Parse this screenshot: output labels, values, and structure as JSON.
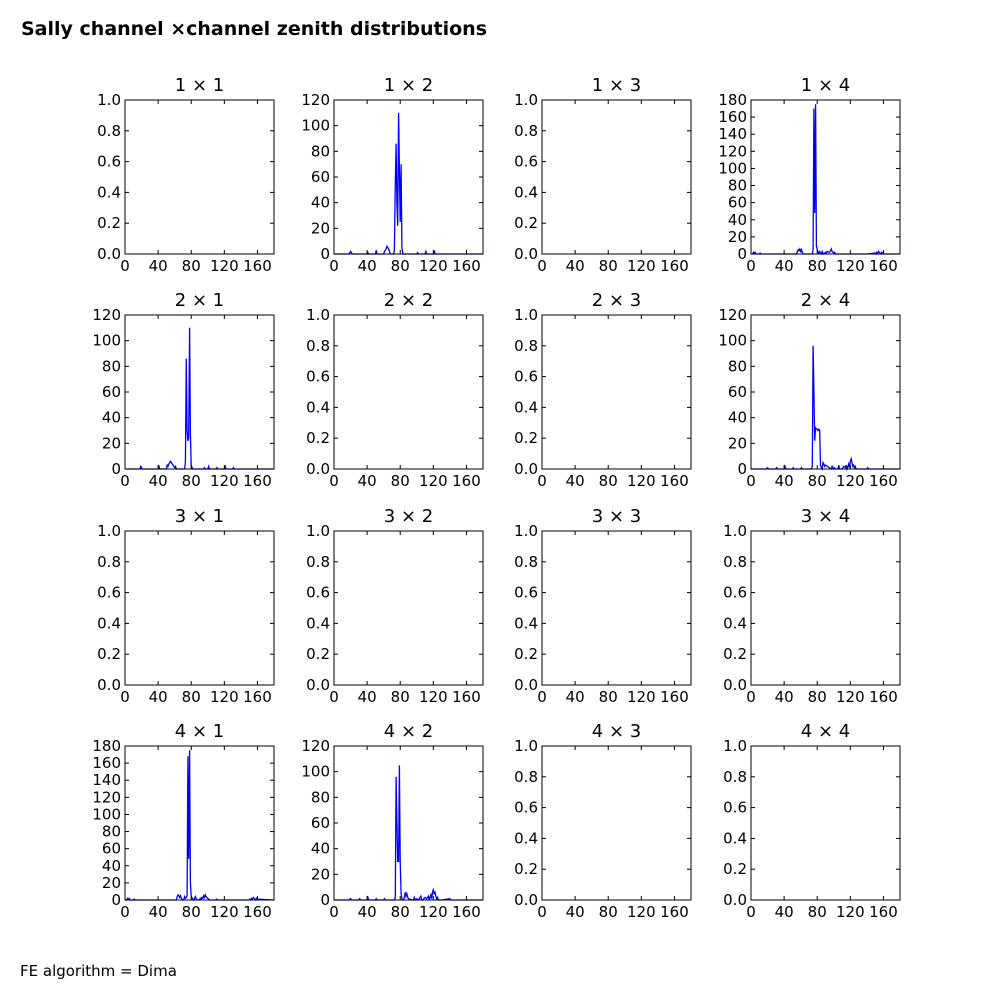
{
  "figure": {
    "title": "Sally channel ×channel zenith distributions",
    "footnote": "FE algorithm = Dima",
    "line_color": "#0000ff"
  },
  "chart_data": [
    {
      "type": "line",
      "title": "1  × 1",
      "x_ticks": [
        0,
        40,
        80,
        120,
        160
      ],
      "y_ticks": [
        "0.0",
        "0.2",
        "0.4",
        "0.6",
        "0.8",
        "1.0"
      ],
      "xlim": [
        0,
        180
      ],
      "ylim": [
        0,
        1
      ],
      "x": [],
      "y": []
    },
    {
      "type": "line",
      "title": "1  × 2",
      "x_ticks": [
        0,
        40,
        80,
        120,
        160
      ],
      "y_ticks": [
        "0",
        "20",
        "40",
        "60",
        "80",
        "100",
        "120"
      ],
      "xlim": [
        0,
        180
      ],
      "ylim": [
        0,
        120
      ],
      "x": [
        0,
        18,
        19,
        20,
        21,
        22,
        40,
        41,
        42,
        50,
        51,
        52,
        60,
        61,
        62,
        63,
        64,
        65,
        66,
        67,
        68,
        69,
        70,
        71,
        72,
        73,
        74,
        75,
        76,
        77,
        78,
        79,
        80,
        81,
        82,
        83,
        84,
        85,
        86,
        87,
        90,
        100,
        101,
        102,
        110,
        111,
        112,
        120,
        121,
        122,
        130,
        140,
        180
      ],
      "y": [
        0,
        0,
        1,
        2,
        1,
        0,
        0,
        1,
        0,
        0,
        3,
        0,
        0,
        2,
        3,
        4,
        6,
        5,
        4,
        2,
        0,
        0,
        0,
        0,
        0,
        3,
        55,
        86,
        40,
        22,
        110,
        65,
        25,
        70,
        5,
        1,
        0,
        0,
        0,
        0,
        0,
        0,
        1,
        0,
        0,
        2,
        0,
        0,
        2,
        0,
        0,
        0,
        0
      ]
    },
    {
      "type": "line",
      "title": "1  × 3",
      "x_ticks": [
        0,
        40,
        80,
        120,
        160
      ],
      "y_ticks": [
        "0.0",
        "0.2",
        "0.4",
        "0.6",
        "0.8",
        "1.0"
      ],
      "xlim": [
        0,
        180
      ],
      "ylim": [
        0,
        1
      ],
      "x": [],
      "y": []
    },
    {
      "type": "line",
      "title": "1  × 4",
      "x_ticks": [
        0,
        40,
        80,
        120,
        160
      ],
      "y_ticks": [
        "0",
        "20",
        "40",
        "60",
        "80",
        "100",
        "120",
        "140",
        "160",
        "180"
      ],
      "xlim": [
        0,
        180
      ],
      "ylim": [
        0,
        180
      ],
      "x": [
        0,
        2,
        3,
        4,
        5,
        6,
        10,
        11,
        12,
        30,
        40,
        50,
        55,
        56,
        57,
        58,
        59,
        60,
        61,
        62,
        63,
        65,
        70,
        74,
        75,
        76,
        77,
        78,
        79,
        80,
        81,
        82,
        83,
        84,
        85,
        86,
        87,
        88,
        90,
        91,
        92,
        95,
        96,
        97,
        98,
        99,
        100,
        101,
        102,
        105,
        110,
        115,
        120,
        125,
        130,
        140,
        150,
        151,
        152,
        153,
        154,
        155,
        156,
        157,
        158,
        159,
        160,
        180
      ],
      "y": [
        0,
        0,
        2,
        1,
        2,
        0,
        0,
        1,
        0,
        0,
        0,
        0,
        0,
        3,
        5,
        4,
        6,
        3,
        5,
        2,
        0,
        0,
        0,
        0,
        5,
        170,
        48,
        175,
        10,
        5,
        2,
        1,
        3,
        1,
        0,
        3,
        1,
        0,
        2,
        1,
        3,
        2,
        4,
        6,
        3,
        2,
        1,
        2,
        0,
        0,
        0,
        0,
        0,
        0,
        0,
        0,
        1,
        0,
        2,
        1,
        3,
        2,
        1,
        0,
        2,
        1,
        0,
        0
      ]
    },
    {
      "type": "line",
      "title": "2  × 1",
      "x_ticks": [
        0,
        40,
        80,
        120,
        160
      ],
      "y_ticks": [
        "0",
        "20",
        "40",
        "60",
        "80",
        "100",
        "120"
      ],
      "xlim": [
        0,
        180
      ],
      "ylim": [
        0,
        120
      ],
      "x": [
        0,
        18,
        19,
        20,
        21,
        40,
        41,
        42,
        50,
        51,
        52,
        53,
        54,
        55,
        56,
        57,
        58,
        59,
        60,
        61,
        62,
        63,
        70,
        72,
        73,
        74,
        75,
        76,
        77,
        78,
        79,
        80,
        81,
        82,
        83,
        90,
        95,
        96,
        97,
        100,
        101,
        102,
        110,
        111,
        112,
        120,
        121,
        122,
        130,
        131,
        132,
        140,
        180
      ],
      "y": [
        0,
        0,
        2,
        1,
        0,
        0,
        2,
        0,
        0,
        3,
        2,
        4,
        5,
        6,
        5,
        4,
        3,
        2,
        1,
        2,
        0,
        0,
        0,
        0,
        5,
        86,
        30,
        22,
        24,
        110,
        28,
        3,
        1,
        0,
        0,
        0,
        0,
        1,
        0,
        0,
        2,
        0,
        0,
        1,
        0,
        0,
        2,
        0,
        0,
        1,
        0,
        0,
        0
      ]
    },
    {
      "type": "line",
      "title": "2  × 2",
      "x_ticks": [
        0,
        40,
        80,
        120,
        160
      ],
      "y_ticks": [
        "0.0",
        "0.2",
        "0.4",
        "0.6",
        "0.8",
        "1.0"
      ],
      "xlim": [
        0,
        180
      ],
      "ylim": [
        0,
        1
      ],
      "x": [],
      "y": []
    },
    {
      "type": "line",
      "title": "2  × 3",
      "x_ticks": [
        0,
        40,
        80,
        120,
        160
      ],
      "y_ticks": [
        "0.0",
        "0.2",
        "0.4",
        "0.6",
        "0.8",
        "1.0"
      ],
      "xlim": [
        0,
        180
      ],
      "ylim": [
        0,
        1
      ],
      "x": [],
      "y": []
    },
    {
      "type": "line",
      "title": "2  × 4",
      "x_ticks": [
        0,
        40,
        80,
        120,
        160
      ],
      "y_ticks": [
        "0",
        "20",
        "40",
        "60",
        "80",
        "100",
        "120"
      ],
      "xlim": [
        0,
        180
      ],
      "ylim": [
        0,
        120
      ],
      "x": [
        0,
        18,
        20,
        21,
        22,
        30,
        31,
        32,
        40,
        41,
        42,
        50,
        51,
        52,
        60,
        61,
        62,
        63,
        72,
        73,
        74,
        75,
        76,
        77,
        78,
        79,
        80,
        81,
        82,
        83,
        84,
        85,
        86,
        87,
        88,
        89,
        90,
        95,
        96,
        97,
        98,
        100,
        101,
        102,
        105,
        106,
        107,
        110,
        112,
        114,
        115,
        116,
        117,
        118,
        119,
        120,
        121,
        122,
        123,
        124,
        125,
        126,
        127,
        130,
        140,
        141,
        142,
        150,
        180
      ],
      "y": [
        0,
        0,
        1,
        0,
        0,
        0,
        1,
        0,
        0,
        2,
        0,
        0,
        1,
        0,
        0,
        1,
        0,
        0,
        0,
        0,
        2,
        96,
        62,
        22,
        32,
        31,
        31,
        30,
        31,
        30,
        3,
        1,
        0,
        5,
        4,
        2,
        3,
        1,
        0,
        0,
        2,
        0,
        1,
        0,
        0,
        3,
        0,
        0,
        2,
        1,
        3,
        0,
        2,
        4,
        1,
        6,
        8,
        5,
        2,
        3,
        1,
        2,
        0,
        0,
        0,
        1,
        0,
        0,
        0
      ]
    },
    {
      "type": "line",
      "title": "3  × 1",
      "x_ticks": [
        0,
        40,
        80,
        120,
        160
      ],
      "y_ticks": [
        "0.0",
        "0.2",
        "0.4",
        "0.6",
        "0.8",
        "1.0"
      ],
      "xlim": [
        0,
        180
      ],
      "ylim": [
        0,
        1
      ],
      "x": [],
      "y": []
    },
    {
      "type": "line",
      "title": "3  × 2",
      "x_ticks": [
        0,
        40,
        80,
        120,
        160
      ],
      "y_ticks": [
        "0.0",
        "0.2",
        "0.4",
        "0.6",
        "0.8",
        "1.0"
      ],
      "xlim": [
        0,
        180
      ],
      "ylim": [
        0,
        1
      ],
      "x": [],
      "y": []
    },
    {
      "type": "line",
      "title": "3  × 3",
      "x_ticks": [
        0,
        40,
        80,
        120,
        160
      ],
      "y_ticks": [
        "0.0",
        "0.2",
        "0.4",
        "0.6",
        "0.8",
        "1.0"
      ],
      "xlim": [
        0,
        180
      ],
      "ylim": [
        0,
        1
      ],
      "x": [],
      "y": []
    },
    {
      "type": "line",
      "title": "3  × 4",
      "x_ticks": [
        0,
        40,
        80,
        120,
        160
      ],
      "y_ticks": [
        "0.0",
        "0.2",
        "0.4",
        "0.6",
        "0.8",
        "1.0"
      ],
      "xlim": [
        0,
        180
      ],
      "ylim": [
        0,
        1
      ],
      "x": [],
      "y": []
    },
    {
      "type": "line",
      "title": "4  × 1",
      "x_ticks": [
        0,
        40,
        80,
        120,
        160
      ],
      "y_ticks": [
        "0",
        "20",
        "40",
        "60",
        "80",
        "100",
        "120",
        "140",
        "160",
        "180"
      ],
      "xlim": [
        0,
        180
      ],
      "ylim": [
        0,
        180
      ],
      "x": [
        0,
        2,
        3,
        4,
        5,
        6,
        10,
        11,
        12,
        30,
        40,
        50,
        60,
        62,
        63,
        64,
        65,
        66,
        67,
        68,
        70,
        71,
        72,
        73,
        74,
        75,
        76,
        77,
        78,
        79,
        80,
        81,
        82,
        83,
        84,
        85,
        86,
        88,
        90,
        91,
        92,
        93,
        94,
        95,
        96,
        97,
        98,
        99,
        100,
        101,
        102,
        105,
        110,
        111,
        112,
        120,
        130,
        140,
        150,
        151,
        152,
        153,
        154,
        155,
        156,
        157,
        158,
        159,
        160,
        180
      ],
      "y": [
        0,
        0,
        2,
        1,
        2,
        0,
        0,
        1,
        0,
        0,
        0,
        0,
        0,
        0,
        4,
        6,
        5,
        3,
        5,
        2,
        0,
        0,
        4,
        2,
        3,
        5,
        168,
        48,
        175,
        20,
        5,
        2,
        1,
        0,
        2,
        4,
        1,
        0,
        0,
        2,
        1,
        3,
        2,
        5,
        3,
        6,
        4,
        3,
        2,
        1,
        0,
        0,
        0,
        1,
        0,
        0,
        0,
        0,
        0,
        1,
        0,
        2,
        1,
        3,
        2,
        1,
        0,
        2,
        1,
        0
      ]
    },
    {
      "type": "line",
      "title": "4  × 2",
      "x_ticks": [
        0,
        40,
        80,
        120,
        160
      ],
      "y_ticks": [
        "0",
        "20",
        "40",
        "60",
        "80",
        "100",
        "120"
      ],
      "xlim": [
        0,
        180
      ],
      "ylim": [
        0,
        120
      ],
      "x": [
        0,
        18,
        20,
        21,
        22,
        30,
        31,
        32,
        40,
        41,
        42,
        50,
        51,
        52,
        60,
        61,
        62,
        63,
        70,
        72,
        73,
        74,
        75,
        76,
        77,
        78,
        79,
        80,
        81,
        82,
        83,
        84,
        85,
        86,
        87,
        88,
        89,
        90,
        95,
        96,
        97,
        98,
        100,
        101,
        102,
        105,
        106,
        107,
        110,
        112,
        114,
        115,
        116,
        117,
        118,
        119,
        120,
        121,
        122,
        123,
        124,
        125,
        126,
        127,
        130,
        140,
        141,
        142,
        150,
        180
      ],
      "y": [
        0,
        0,
        1,
        0,
        0,
        0,
        1,
        0,
        0,
        2,
        0,
        0,
        1,
        0,
        0,
        1,
        0,
        0,
        0,
        0,
        0,
        2,
        96,
        62,
        30,
        30,
        105,
        30,
        5,
        1,
        0,
        0,
        2,
        6,
        3,
        5,
        2,
        1,
        0,
        0,
        2,
        0,
        1,
        0,
        0,
        3,
        0,
        0,
        2,
        1,
        3,
        0,
        2,
        4,
        1,
        6,
        8,
        5,
        6,
        3,
        1,
        2,
        0,
        0,
        0,
        1,
        0,
        0,
        0,
        0
      ]
    },
    {
      "type": "line",
      "title": "4  × 3",
      "x_ticks": [
        0,
        40,
        80,
        120,
        160
      ],
      "y_ticks": [
        "0.0",
        "0.2",
        "0.4",
        "0.6",
        "0.8",
        "1.0"
      ],
      "xlim": [
        0,
        180
      ],
      "ylim": [
        0,
        1
      ],
      "x": [],
      "y": []
    },
    {
      "type": "line",
      "title": "4  × 4",
      "x_ticks": [
        0,
        40,
        80,
        120,
        160
      ],
      "y_ticks": [
        "0.0",
        "0.2",
        "0.4",
        "0.6",
        "0.8",
        "1.0"
      ],
      "xlim": [
        0,
        180
      ],
      "ylim": [
        0,
        1
      ],
      "x": [],
      "y": []
    }
  ]
}
